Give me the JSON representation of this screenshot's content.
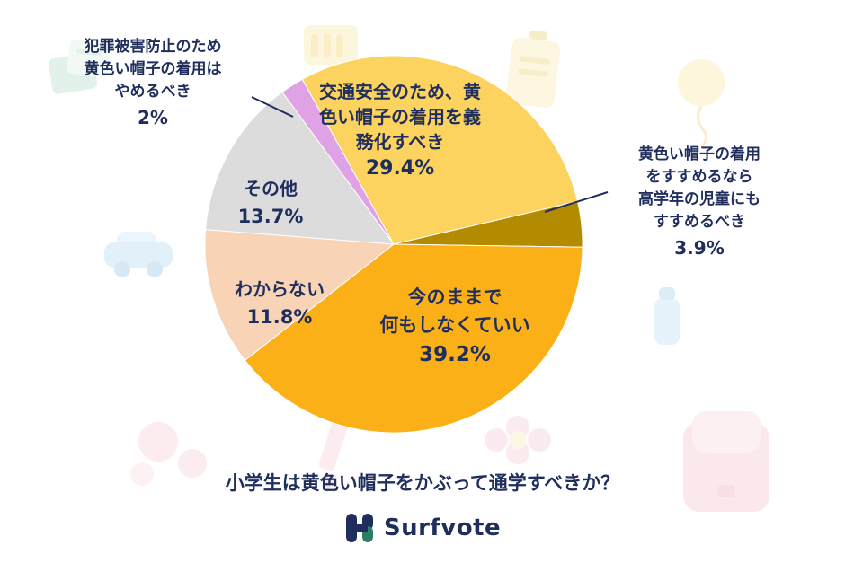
{
  "chart_data": {
    "type": "pie",
    "title": "小学生は黄色い帽子をかぶって通学すべきか？",
    "start_angle_deg": -29,
    "legend_position": "labels-on-chart",
    "text_color": "#1f2e5c",
    "slices": [
      {
        "name": "mandate-for-traffic-safety",
        "value": 29.4,
        "pct": "29.4%",
        "color": "#FCD35F",
        "label_placement": "inside",
        "lines": [
          "交通安全のため、黄",
          "色い帽子の着用を義",
          "務化すべき"
        ]
      },
      {
        "name": "recommend-to-older-students",
        "value": 3.9,
        "pct": "3.9%",
        "color": "#B38B00",
        "label_placement": "outside-right",
        "lines": [
          "黄色い帽子の着用",
          "をすすめるなら",
          "高学年の児童にも",
          "すすめるべき"
        ]
      },
      {
        "name": "keep-as-is",
        "value": 39.2,
        "pct": "39.2%",
        "color": "#FBB017",
        "label_placement": "inside",
        "lines": [
          "今のままで",
          "何もしなくていい"
        ]
      },
      {
        "name": "dont-know",
        "value": 11.8,
        "pct": "11.8%",
        "color": "#F8D3B5",
        "label_placement": "inside",
        "lines": [
          "わからない"
        ]
      },
      {
        "name": "other",
        "value": 13.7,
        "pct": "13.7%",
        "color": "#DCDCDC",
        "label_placement": "inside",
        "lines": [
          "その他"
        ]
      },
      {
        "name": "stop-wearing-to-prevent-crime",
        "value": 2,
        "pct": "2%",
        "color": "#DFA3E5",
        "label_placement": "outside-top-left",
        "lines": [
          "犯罪被害防止のため",
          "黄色い帽子の着用は",
          "やめるべき"
        ]
      }
    ]
  },
  "footer": {
    "brand": "Surfvote"
  }
}
